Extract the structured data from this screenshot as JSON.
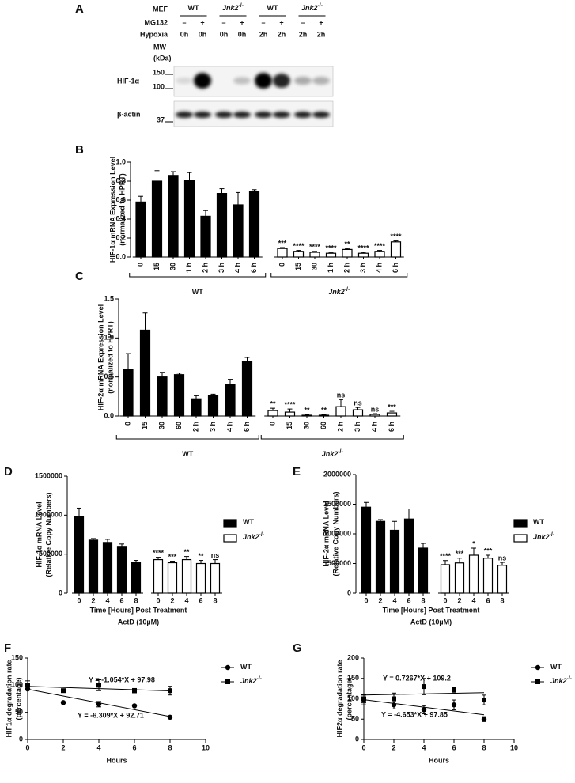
{
  "blot": {
    "panel": "A",
    "mef": {
      "label": "MEF",
      "groups": [
        {
          "name": "WT"
        },
        {
          "name": "Jnk2",
          "name_superscript": "-/-"
        },
        {
          "name": "WT"
        },
        {
          "name": "Jnk2",
          "name_superscript": "-/-"
        }
      ]
    },
    "mg132": {
      "label": "MG132",
      "lanes": [
        "–",
        "+",
        "–",
        "+",
        "–",
        "+",
        "–",
        "+"
      ]
    },
    "hypoxia": {
      "label": "Hypoxia",
      "lanes": [
        "0h",
        "0h",
        "0h",
        "0h",
        "2h",
        "2h",
        "2h",
        "2h"
      ]
    },
    "mw_label": [
      "MW",
      "(kDa)"
    ],
    "rows": [
      {
        "label": "HIF-1α",
        "markers": [
          "150",
          "100"
        ]
      },
      {
        "label": "β-actin",
        "markers": [
          "37"
        ]
      }
    ]
  },
  "chart_data": [
    {
      "type": "bar",
      "panel": "B",
      "y_label": [
        "HIF-1α mRNA Expression Level",
        "(normalized to HPRT)"
      ],
      "categories": [
        "0",
        "15",
        "30",
        "1 h",
        "2 h",
        "3 h",
        "4 h",
        "6 h"
      ],
      "ylim": [
        0,
        1
      ],
      "yticks": [
        {
          "value": 0,
          "label": "0.0"
        },
        0.2,
        0.4,
        0.6,
        0.8,
        {
          "value": 1,
          "label": "1.0"
        }
      ],
      "series": [
        {
          "name": "WT",
          "color": "#000000",
          "values": [
            0.58,
            0.8,
            0.86,
            0.81,
            0.43,
            0.67,
            0.55,
            0.69
          ],
          "errors": [
            0.06,
            0.11,
            0.04,
            0.08,
            0.06,
            0.05,
            0.13,
            0.02
          ]
        },
        {
          "name": "Jnk2",
          "name_superscript": "-/-",
          "color": "#ffffff",
          "values": [
            0.09,
            0.06,
            0.05,
            0.04,
            0.08,
            0.04,
            0.06,
            0.16
          ],
          "errors": [
            0.01,
            0.01,
            0.01,
            0.01,
            0.01,
            0.01,
            0.01,
            0.01
          ],
          "significance": [
            "***",
            "****",
            "****",
            "****",
            "**",
            "****",
            "****",
            "****"
          ]
        }
      ]
    },
    {
      "type": "bar",
      "panel": "C",
      "y_label": [
        "HIF-2α mRNA Expression Level",
        "(normalized to HPRT)"
      ],
      "categories": [
        "0",
        "15",
        "30",
        "60",
        "2 h",
        "3 h",
        "4 h",
        "6 h"
      ],
      "ylim": [
        0,
        1.5
      ],
      "yticks": [
        {
          "value": 0,
          "label": "0.0"
        },
        0.5,
        {
          "value": 1,
          "label": "1.0"
        },
        1.5
      ],
      "series": [
        {
          "name": "WT",
          "color": "#000000",
          "values": [
            0.6,
            1.1,
            0.5,
            0.53,
            0.22,
            0.26,
            0.4,
            0.7
          ],
          "errors": [
            0.2,
            0.22,
            0.06,
            0.02,
            0.04,
            0.02,
            0.07,
            0.05
          ]
        },
        {
          "name": "Jnk2",
          "name_superscript": "-/-",
          "color": "#ffffff",
          "values": [
            0.07,
            0.05,
            0.01,
            0.01,
            0.12,
            0.08,
            0.02,
            0.04
          ],
          "errors": [
            0.03,
            0.04,
            0.01,
            0.01,
            0.09,
            0.03,
            0.01,
            0.02
          ],
          "significance": [
            "**",
            "****",
            "**",
            "**",
            "ns",
            "ns",
            "ns",
            "***"
          ]
        }
      ]
    },
    {
      "type": "bar",
      "panel": "D",
      "legend": true,
      "y_label": [
        "HIF-1α mRNA Level",
        "(Relative Copy Numbers)"
      ],
      "x_label": [
        "Time [Hours] Post Treatment",
        "ActD (10µM)"
      ],
      "categories": [
        "0",
        "2",
        "4",
        "6",
        "8"
      ],
      "ylim": [
        0,
        1500000
      ],
      "yticks": [
        0,
        500000,
        1000000,
        1500000
      ],
      "series": [
        {
          "name": "WT",
          "color": "#000000",
          "values": [
            980000,
            680000,
            650000,
            600000,
            390000
          ],
          "errors": [
            110000,
            20000,
            40000,
            30000,
            30000
          ]
        },
        {
          "name": "Jnk2",
          "name_superscript": "-/-",
          "color": "#ffffff",
          "values": [
            430000,
            390000,
            430000,
            380000,
            380000
          ],
          "errors": [
            30000,
            20000,
            40000,
            40000,
            50000
          ],
          "significance": [
            "****",
            "***",
            "**",
            "**",
            "ns"
          ]
        }
      ]
    },
    {
      "type": "bar",
      "panel": "E",
      "legend": true,
      "y_label": [
        "HIF-2α mRNA Level",
        "(Relative Copy Numbers)"
      ],
      "x_label": [
        "Time [Hours] Post Treatment",
        "ActD (10µM)"
      ],
      "categories": [
        "0",
        "2",
        "4",
        "6",
        "8"
      ],
      "ylim": [
        0,
        2000000
      ],
      "yticks": [
        0,
        500000,
        1000000,
        1500000,
        2000000
      ],
      "series": [
        {
          "name": "WT",
          "color": "#000000",
          "values": [
            1450000,
            1210000,
            1060000,
            1250000,
            760000
          ],
          "errors": [
            80000,
            30000,
            150000,
            170000,
            80000
          ]
        },
        {
          "name": "Jnk2",
          "name_superscript": "-/-",
          "color": "#ffffff",
          "values": [
            480000,
            510000,
            640000,
            590000,
            470000
          ],
          "errors": [
            70000,
            80000,
            120000,
            50000,
            50000
          ],
          "significance": [
            "****",
            "***",
            "*",
            "***",
            "ns"
          ]
        }
      ]
    },
    {
      "type": "scatter",
      "panel": "F",
      "legend": true,
      "y_label": [
        "HIF1α degradation rate",
        "(percentage)"
      ],
      "x_label": "Hours",
      "xlim": [
        0,
        10
      ],
      "xticks": [
        0,
        2,
        4,
        6,
        8,
        10
      ],
      "ylim": [
        0,
        150
      ],
      "yticks": [
        0,
        50,
        100,
        150
      ],
      "series": [
        {
          "name": "WT",
          "marker": "circle",
          "color": "#000000",
          "x": [
            0,
            2,
            4,
            6,
            8
          ],
          "values": [
            93,
            68,
            65,
            62,
            41
          ],
          "errors": [
            0,
            0,
            5,
            0,
            0
          ],
          "fit": {
            "slope": -6.309,
            "intercept": 92.71,
            "label": "Y = -6.309*X + 92.71"
          }
        },
        {
          "name": "Jnk2",
          "name_superscript": "-/-",
          "marker": "square",
          "color": "#000000",
          "x": [
            0,
            2,
            4,
            6,
            8
          ],
          "values": [
            100,
            90,
            100,
            90,
            90
          ],
          "errors": [
            8,
            0,
            10,
            4,
            8
          ],
          "fit": {
            "slope": -1.054,
            "intercept": 97.98,
            "label": "Y = -1.054*X + 97.98"
          }
        }
      ]
    },
    {
      "type": "scatter",
      "panel": "G",
      "legend": true,
      "y_label": [
        "HIF2α degradation rate",
        "(percentage)"
      ],
      "x_label": "Hours",
      "xlim": [
        0,
        10
      ],
      "xticks": [
        0,
        2,
        4,
        6,
        8,
        10
      ],
      "ylim": [
        0,
        200
      ],
      "yticks": [
        0,
        50,
        100,
        150,
        200
      ],
      "series": [
        {
          "name": "WT",
          "marker": "circle",
          "color": "#000000",
          "x": [
            0,
            2,
            4,
            6,
            8
          ],
          "values": [
            97,
            85,
            73,
            85,
            50
          ],
          "errors": [
            12,
            10,
            10,
            12,
            6
          ],
          "fit": {
            "slope": -4.653,
            "intercept": 97.85,
            "label": "Y = -4.653*X + 97.85"
          }
        },
        {
          "name": "Jnk2",
          "name_superscript": "-/-",
          "marker": "square",
          "color": "#000000",
          "x": [
            0,
            2,
            4,
            6,
            8
          ],
          "values": [
            100,
            100,
            130,
            122,
            97
          ],
          "errors": [
            10,
            14,
            20,
            6,
            12
          ],
          "fit": {
            "slope": 0.7267,
            "intercept": 109.2,
            "label": "Y = 0.7267*X + 109.2"
          }
        }
      ]
    }
  ]
}
